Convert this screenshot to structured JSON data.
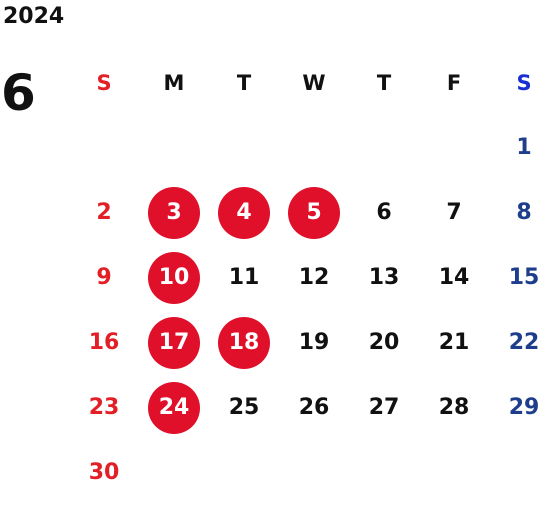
{
  "calendar": {
    "year": "2024",
    "month": "6",
    "weekdays": [
      "S",
      "M",
      "T",
      "W",
      "T",
      "F",
      "S"
    ],
    "first_weekday_index": 6,
    "days": [
      "1",
      "2",
      "3",
      "4",
      "5",
      "6",
      "7",
      "8",
      "9",
      "10",
      "11",
      "12",
      "13",
      "14",
      "15",
      "16",
      "17",
      "18",
      "19",
      "20",
      "21",
      "22",
      "23",
      "24",
      "25",
      "26",
      "27",
      "28",
      "29",
      "30"
    ],
    "highlighted_days": [
      "3",
      "4",
      "5",
      "10",
      "17",
      "18",
      "24"
    ],
    "colors": {
      "sunday": "#e21f26",
      "saturday": "#1e3e8c",
      "saturday_header": "#1a2fd1",
      "highlight": "#e0102a",
      "text": "#111111"
    }
  }
}
